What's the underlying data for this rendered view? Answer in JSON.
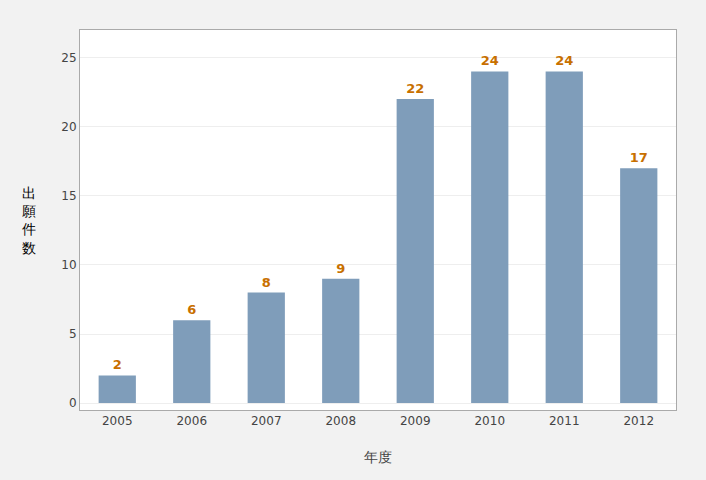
{
  "chart_data": {
    "type": "bar",
    "categories": [
      "2005",
      "2006",
      "2007",
      "2008",
      "2009",
      "2010",
      "2011",
      "2012"
    ],
    "values": [
      2,
      6,
      8,
      9,
      22,
      24,
      24,
      17
    ],
    "color": "#7f9dba",
    "xlabel": "年度",
    "ylabel": "出\n願\n件\n数",
    "ylim": [
      -0.5,
      27
    ],
    "yticks": [
      0,
      5,
      10,
      15,
      20,
      25
    ],
    "grid": true,
    "data_labels": true
  }
}
